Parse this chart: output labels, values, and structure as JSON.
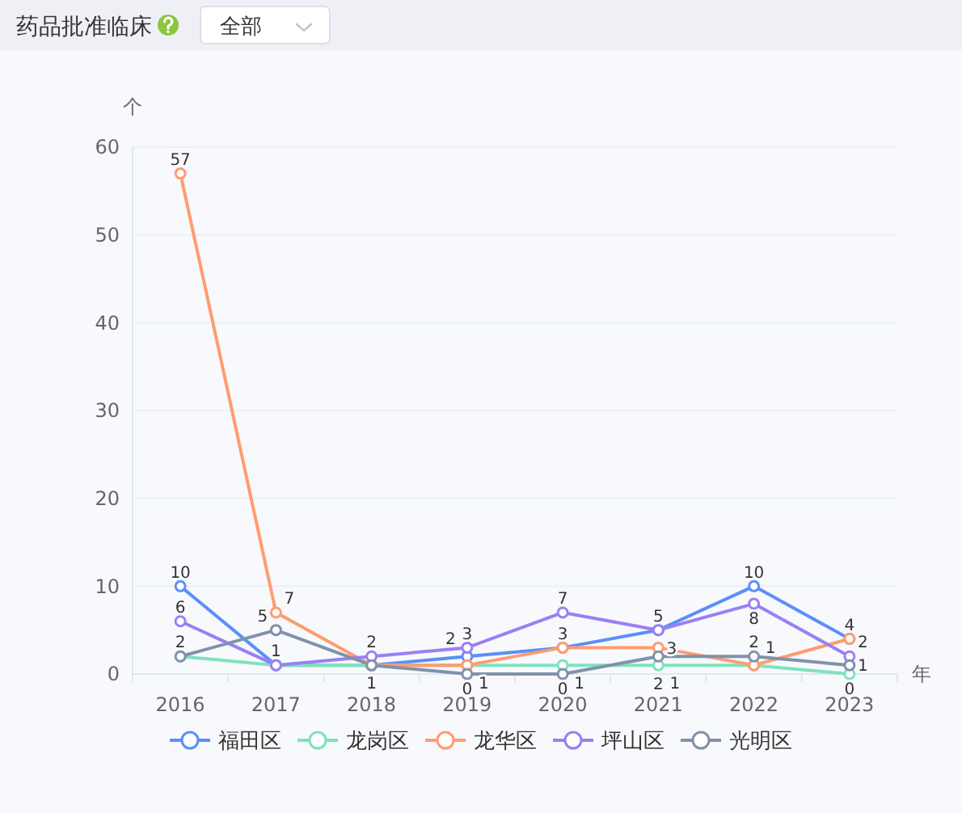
{
  "chart_data": {
    "type": "line",
    "title": "药品批准临床",
    "annotations": [
      "全部"
    ],
    "xlabel": "年",
    "ylabel": "个",
    "categories": [
      "2016",
      "2017",
      "2018",
      "2019",
      "2020",
      "2021",
      "2022",
      "2023"
    ],
    "series": [
      {
        "name": "福田区",
        "color": "#5b8ff9",
        "values": [
          10,
          1,
          1,
          2,
          3,
          5,
          10,
          4
        ],
        "value_labels": [
          "10",
          "1",
          "1",
          "2",
          "3",
          "5",
          "10",
          "4"
        ]
      },
      {
        "name": "龙岗区",
        "color": "#7ee3bd",
        "values": [
          2,
          1,
          1,
          1,
          1,
          1,
          1,
          0
        ],
        "value_labels": [
          "2",
          null,
          null,
          "1",
          "1",
          "1",
          "1",
          "0"
        ]
      },
      {
        "name": "龙华区",
        "color": "#ff9c6e",
        "values": [
          57,
          7,
          1,
          1,
          3,
          3,
          1,
          4
        ],
        "value_labels": [
          "57",
          "7",
          null,
          null,
          null,
          "3",
          null,
          null
        ]
      },
      {
        "name": "坪山区",
        "color": "#9a7ff5",
        "values": [
          6,
          1,
          2,
          3,
          7,
          5,
          8,
          2
        ],
        "value_labels": [
          "6",
          null,
          "2",
          "3",
          "7",
          null,
          "8",
          "2"
        ]
      },
      {
        "name": "光明区",
        "color": "#8092ab",
        "values": [
          2,
          5,
          1,
          0,
          0,
          2,
          2,
          1
        ],
        "value_labels": [
          null,
          "5",
          null,
          "0",
          "0",
          "2",
          "2",
          "1"
        ]
      }
    ],
    "ylim": [
      0,
      60
    ],
    "yticks": [
      0,
      10,
      20,
      30,
      40,
      50,
      60
    ],
    "grid": "y",
    "legend": "bottom",
    "marker": "circle",
    "line_style": "solid"
  }
}
